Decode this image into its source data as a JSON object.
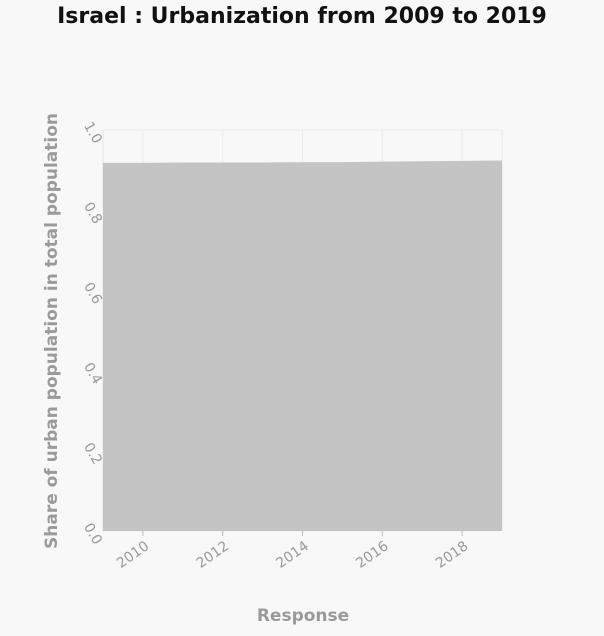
{
  "chart_data": {
    "type": "area",
    "title": "Israel : Urbanization from 2009 to 2019",
    "xlabel": "Response",
    "ylabel": "Share of urban population in total population",
    "x": [
      2009,
      2010,
      2011,
      2012,
      2013,
      2014,
      2015,
      2016,
      2017,
      2018,
      2019
    ],
    "values": [
      0.918,
      0.918,
      0.919,
      0.919,
      0.919,
      0.92,
      0.92,
      0.921,
      0.922,
      0.923,
      0.924
    ],
    "xlim": [
      2009,
      2019
    ],
    "ylim": [
      0,
      1.0
    ],
    "x_ticks": [
      "2010",
      "2012",
      "2014",
      "2016",
      "2018"
    ],
    "y_ticks": [
      "0.0",
      "0.2",
      "0.4",
      "0.6",
      "0.8",
      "1.0"
    ],
    "grid": true,
    "fill_color": "#c4c4c4",
    "grid_color": "#ebebeb",
    "background": "#f8f8f8"
  }
}
